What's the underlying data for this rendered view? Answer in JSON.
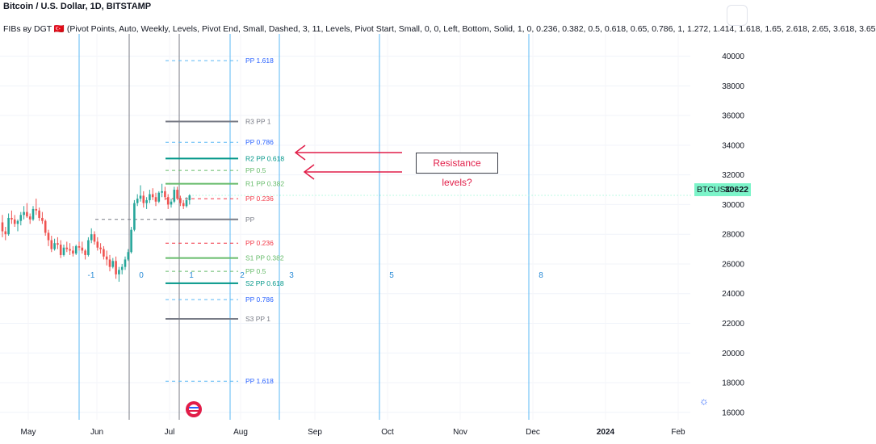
{
  "header": {
    "symbol_title": "Bitcoin / U.S. Dollar, 1D, BITSTAMP",
    "indicator_title": "FIBs ву DGT 🇹🇷 (Pivot Points, Auto, Weekly, Levels, Pivot End, Small, Dashed, 3, 11, Levels, Pivot Start, Small, 0, 0, Left, Bottom, Solid, 1, 0, 0.236, 0.382, 0.5, 0.618, 0.65, 0.786, 1, 1.272, 1.414, 1.618, 1.65, 2.618, 2.65, 3.618, 3.65"
  },
  "annotation": {
    "text": "Resistance levels?"
  },
  "price_tag": {
    "symbol": "BTCUSD",
    "value": "30622"
  },
  "colors": {
    "fib_time_line": "#5bb8f5",
    "pivot_line": "#787b86",
    "pp_label": "#2962ff",
    "resistance_label": "#f23645",
    "r_level": "#009688",
    "green_level": "#66bb6a",
    "arrow": "#e11d48",
    "candle_up": "#26a69a",
    "candle_down": "#ef5350"
  },
  "chart_data": {
    "type": "candlestick",
    "y_axis": {
      "range": [
        15500,
        41500
      ],
      "ticks": [
        16000,
        18000,
        20000,
        22000,
        24000,
        26000,
        28000,
        30000,
        32000,
        34000,
        36000,
        38000,
        40000
      ]
    },
    "x_axis": {
      "ticks": [
        "May",
        "Jun",
        "Jul",
        "Aug",
        "Sep",
        "Oct",
        "Nov",
        "Dec",
        "2024",
        "Feb"
      ]
    },
    "last_price": 30622,
    "pivot_levels": [
      {
        "label": "PP 1.618",
        "value": 39700,
        "style": "dashed",
        "color": "#5bb8f5"
      },
      {
        "label": "R3 PP 1",
        "value": 35600,
        "style": "solid",
        "color": "#787b86"
      },
      {
        "label": "PP 0.786",
        "value": 34200,
        "style": "dashed",
        "color": "#5bb8f5"
      },
      {
        "label": "R2 PP 0.618",
        "value": 33100,
        "style": "solid",
        "color": "#009688"
      },
      {
        "label": "PP 0.5",
        "value": 32300,
        "style": "dashed",
        "color": "#66bb6a"
      },
      {
        "label": "R1 PP 0.382",
        "value": 31400,
        "style": "solid",
        "color": "#66bb6a"
      },
      {
        "label": "PP 0.236",
        "value": 30400,
        "style": "dashed",
        "color": "#f23645"
      },
      {
        "label": "PP",
        "value": 29000,
        "style": "solid",
        "color": "#787b86"
      },
      {
        "label": "PP 0.236",
        "value": 27400,
        "style": "dashed",
        "color": "#f23645"
      },
      {
        "label": "S1 PP 0.382",
        "value": 26400,
        "style": "solid",
        "color": "#66bb6a"
      },
      {
        "label": "PP 0.5",
        "value": 25500,
        "style": "dashed",
        "color": "#66bb6a"
      },
      {
        "label": "S2 PP 0.618",
        "value": 24700,
        "style": "solid",
        "color": "#009688"
      },
      {
        "label": "PP 0.786",
        "value": 23600,
        "style": "dashed",
        "color": "#5bb8f5"
      },
      {
        "label": "S3 PP 1",
        "value": 22300,
        "style": "solid",
        "color": "#787b86"
      },
      {
        "label": "PP 1.618",
        "value": 18100,
        "style": "dashed",
        "color": "#5bb8f5"
      }
    ],
    "fib_time_labels": [
      "-1",
      "0",
      "1",
      "2",
      "3",
      "5",
      "8"
    ],
    "candles": [
      [
        28800,
        29300,
        27800,
        28200
      ],
      [
        28200,
        28500,
        27600,
        28000
      ],
      [
        28000,
        29400,
        27900,
        29100
      ],
      [
        29100,
        29600,
        28700,
        29000
      ],
      [
        29000,
        29300,
        28500,
        28700
      ],
      [
        28700,
        29000,
        28200,
        28900
      ],
      [
        28900,
        29500,
        28600,
        29300
      ],
      [
        29300,
        29900,
        29000,
        29500
      ],
      [
        29500,
        30100,
        29100,
        29200
      ],
      [
        29200,
        29400,
        28700,
        29000
      ],
      [
        29000,
        29900,
        28900,
        29700
      ],
      [
        29700,
        30400,
        29300,
        29600
      ],
      [
        29600,
        29800,
        28900,
        29100
      ],
      [
        29100,
        29500,
        28700,
        28900
      ],
      [
        28900,
        29000,
        27900,
        28100
      ],
      [
        28100,
        28300,
        27200,
        27600
      ],
      [
        27600,
        27900,
        26800,
        27000
      ],
      [
        27000,
        27700,
        26900,
        27400
      ],
      [
        27400,
        27800,
        27000,
        27300
      ],
      [
        27300,
        27600,
        26400,
        26600
      ],
      [
        26600,
        27300,
        26500,
        27100
      ],
      [
        27100,
        27500,
        26800,
        27000
      ],
      [
        27000,
        27400,
        26600,
        26900
      ],
      [
        26900,
        27200,
        26500,
        26700
      ],
      [
        26700,
        27300,
        26600,
        27200
      ],
      [
        27200,
        27500,
        26900,
        27100
      ],
      [
        27100,
        27500,
        26700,
        26900
      ],
      [
        26900,
        27000,
        26300,
        26600
      ],
      [
        26600,
        27800,
        26500,
        27600
      ],
      [
        27600,
        28400,
        27400,
        28000
      ],
      [
        28000,
        28200,
        27300,
        27500
      ],
      [
        27500,
        27800,
        26900,
        27100
      ],
      [
        27100,
        27400,
        26700,
        27000
      ],
      [
        27000,
        27200,
        26300,
        26500
      ],
      [
        26500,
        26900,
        25900,
        26300
      ],
      [
        26300,
        26600,
        25500,
        25800
      ],
      [
        25800,
        26400,
        25700,
        26200
      ],
      [
        26200,
        26500,
        25000,
        25300
      ],
      [
        25300,
        25800,
        24800,
        25600
      ],
      [
        25600,
        26000,
        25300,
        25800
      ],
      [
        25800,
        26500,
        25600,
        26300
      ],
      [
        26300,
        27000,
        26200,
        26800
      ],
      [
        26800,
        28500,
        26700,
        28300
      ],
      [
        28300,
        30300,
        28200,
        30100
      ],
      [
        30100,
        30700,
        29900,
        30400
      ],
      [
        30400,
        31300,
        30200,
        30600
      ],
      [
        30600,
        30900,
        29800,
        30100
      ],
      [
        30100,
        30500,
        29700,
        30300
      ],
      [
        30300,
        31000,
        30100,
        30700
      ],
      [
        30700,
        31100,
        30300,
        30500
      ],
      [
        30500,
        30800,
        29900,
        30200
      ],
      [
        30200,
        30900,
        30100,
        30800
      ],
      [
        30800,
        31400,
        30500,
        30900
      ],
      [
        30900,
        31200,
        30300,
        30500
      ],
      [
        30500,
        30700,
        29700,
        30000
      ],
      [
        30000,
        30400,
        29800,
        30200
      ],
      [
        30200,
        31200,
        30100,
        31000
      ],
      [
        31000,
        31200,
        30300,
        30400
      ],
      [
        30400,
        30600,
        29900,
        30100
      ],
      [
        30100,
        30300,
        29700,
        29900
      ],
      [
        29900,
        30500,
        29800,
        30300
      ],
      [
        30300,
        30700,
        30000,
        30622
      ]
    ]
  }
}
